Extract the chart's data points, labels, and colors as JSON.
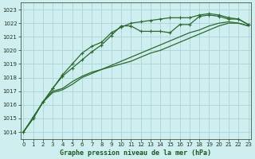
{
  "title": "Graphe pression niveau de la mer (hPa)",
  "bg_color": "#ceeef0",
  "grid_color": "#aad4d8",
  "line_color": "#2d6a2d",
  "x_ticks": [
    0,
    1,
    2,
    3,
    4,
    5,
    6,
    7,
    8,
    9,
    10,
    11,
    12,
    13,
    14,
    15,
    16,
    17,
    18,
    19,
    20,
    21,
    22,
    23
  ],
  "y_ticks": [
    1014,
    1015,
    1016,
    1017,
    1018,
    1019,
    1020,
    1021,
    1022,
    1023
  ],
  "ylim": [
    1013.5,
    1023.5
  ],
  "xlim": [
    -0.3,
    23.3
  ],
  "series": [
    {
      "y": [
        1014.0,
        1015.0,
        1016.2,
        1016.9,
        1017.1,
        1017.5,
        1018.0,
        1018.3,
        1018.6,
        1018.8,
        1019.0,
        1019.2,
        1019.5,
        1019.8,
        1020.0,
        1020.3,
        1020.6,
        1020.9,
        1021.2,
        1021.5,
        1021.8,
        1022.0,
        1022.0,
        1021.8
      ],
      "markers": false,
      "linewidth": 0.9
    },
    {
      "y": [
        1014.0,
        1015.0,
        1016.2,
        1017.0,
        1017.2,
        1017.7,
        1018.1,
        1018.4,
        1018.6,
        1018.9,
        1019.2,
        1019.5,
        1019.8,
        1020.1,
        1020.4,
        1020.7,
        1021.0,
        1021.3,
        1021.5,
        1021.8,
        1022.0,
        1022.1,
        1022.0,
        1021.8
      ],
      "markers": false,
      "linewidth": 0.9
    },
    {
      "y": [
        1014.0,
        1015.1,
        1016.2,
        1017.2,
        1018.1,
        1018.7,
        1019.3,
        1019.9,
        1020.4,
        1021.1,
        1021.8,
        1021.8,
        1021.4,
        1021.4,
        1021.4,
        1021.3,
        1021.9,
        1021.9,
        1022.5,
        1022.6,
        1022.5,
        1022.3,
        1022.3,
        1021.9
      ],
      "markers": true,
      "linewidth": 0.9
    },
    {
      "y": [
        1014.0,
        1015.0,
        1016.2,
        1017.2,
        1018.2,
        1019.0,
        1019.8,
        1020.3,
        1020.6,
        1021.3,
        1021.7,
        1022.0,
        1022.1,
        1022.2,
        1022.3,
        1022.4,
        1022.4,
        1022.4,
        1022.6,
        1022.7,
        1022.6,
        1022.4,
        1022.3,
        1021.9
      ],
      "markers": true,
      "linewidth": 0.9
    }
  ]
}
